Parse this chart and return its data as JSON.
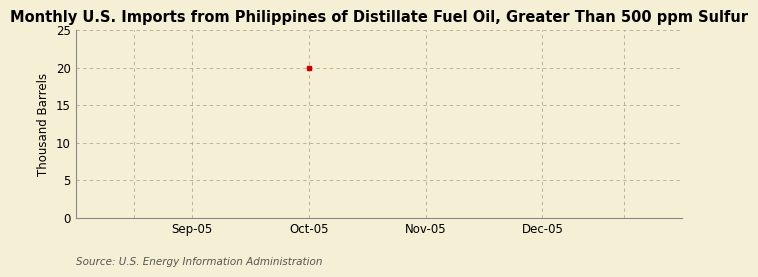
{
  "title": "Monthly U.S. Imports from Philippines of Distillate Fuel Oil, Greater Than 500 ppm Sulfur",
  "ylabel": "Thousand Barrels",
  "source": "Source: U.S. Energy Information Administration",
  "background_color": "#f5efd5",
  "ylim": [
    0,
    25
  ],
  "yticks": [
    0,
    5,
    10,
    15,
    20,
    25
  ],
  "xtick_labels": [
    "Sep-05",
    "Oct-05",
    "Nov-05",
    "Dec-05"
  ],
  "data_point_y": 20,
  "data_color": "#cc0000",
  "grid_color": "#b0a898",
  "title_fontsize": 10.5,
  "ylabel_fontsize": 8.5,
  "tick_fontsize": 8.5,
  "source_fontsize": 7.5,
  "xlim_left": 0.0,
  "xlim_right": 5.2,
  "x_positions": [
    1,
    2,
    3,
    4
  ],
  "vline_positions": [
    0.5,
    1,
    2,
    3,
    4,
    4.7
  ],
  "dp_x": 2
}
